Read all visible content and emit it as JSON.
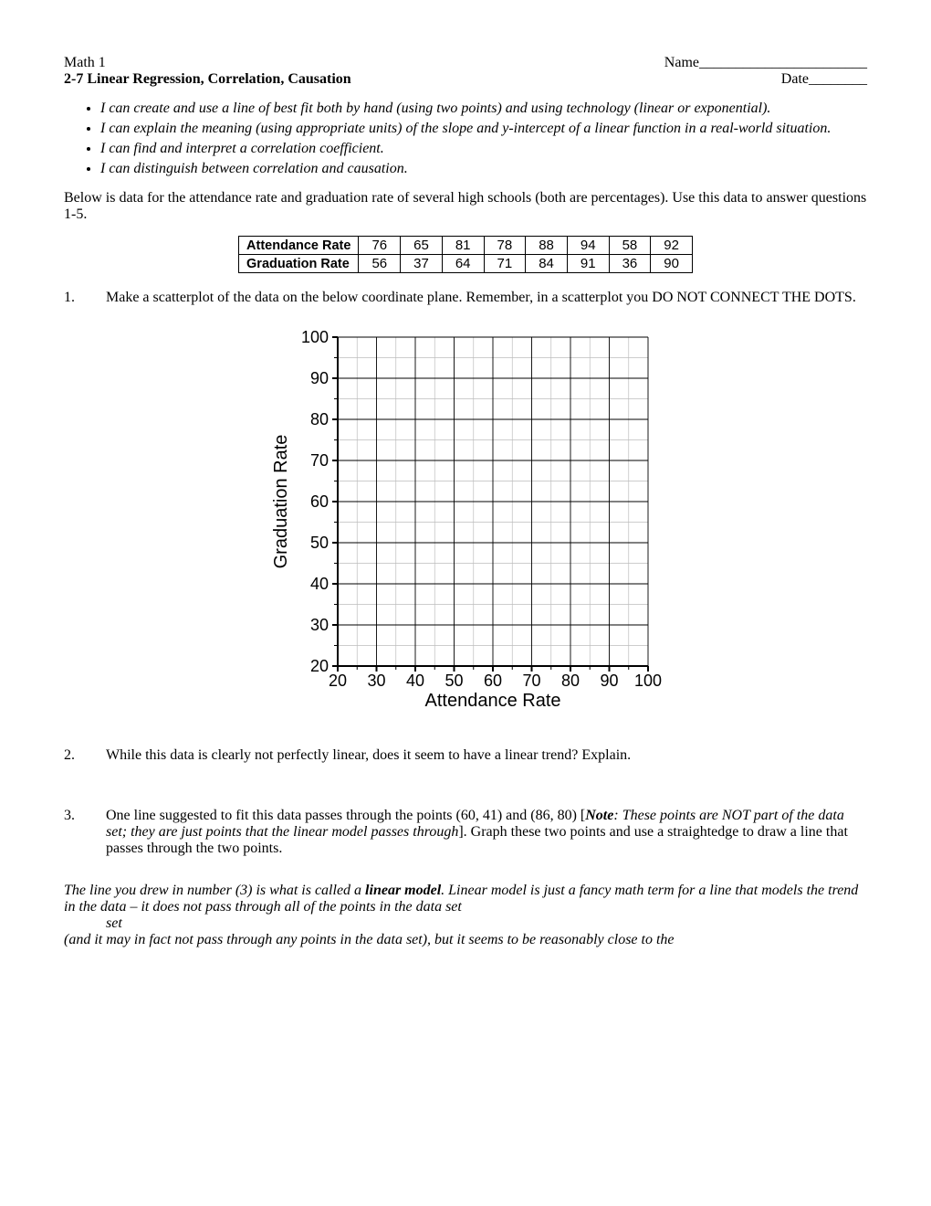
{
  "header": {
    "course": "Math 1",
    "title": "2-7 Linear Regression, Correlation, Causation",
    "name_label": "Name",
    "date_label": "Date"
  },
  "objectives": [
    "I can create and use a line of best fit both by hand (using two points) and using technology (linear or exponential).",
    "I can explain the meaning (using appropriate units) of the slope and y-intercept of a linear function in a real-world situation.",
    "I can find and interpret a correlation coefficient.",
    "I can distinguish between correlation and causation."
  ],
  "intro": "Below is data for the attendance rate and graduation rate of several high schools (both are percentages).  Use this data to answer questions 1-5.",
  "table": {
    "row_labels": [
      "Attendance Rate",
      "Graduation Rate"
    ],
    "rows": [
      [
        76,
        65,
        81,
        78,
        88,
        94,
        58,
        92
      ],
      [
        56,
        37,
        64,
        71,
        84,
        91,
        36,
        90
      ]
    ]
  },
  "questions": {
    "q1": {
      "num": "1.",
      "text_a": "Make a scatterplot of the data on the below coordinate plane.  Remember, in a scatterplot you DO NOT CONNECT THE DOTS."
    },
    "q2": {
      "num": "2.",
      "text": "While this data is clearly not perfectly linear, does it seem to have a linear trend?  Explain."
    },
    "q3": {
      "num": "3.",
      "text_a": "One line suggested to fit this data passes through the points (60, 41) and (86, 80) [",
      "note_label": "Note",
      "note_body": ": These points are NOT part of the data set; they are just points that the linear model passes through",
      "text_b": "].  Graph these two points and use a straightedge to draw a line that passes through the two points."
    }
  },
  "footer": {
    "line1_a": "The line you drew in number (3) is what is called a ",
    "line1_bold": "linear model",
    "line1_b": ".  Linear model is just a fancy math term for a line that models the trend in the data – it does not pass through all of the points in the data set",
    "line2": "(and it may in fact not pass through any points in the data set), but it seems to be reasonably close to the"
  },
  "chart": {
    "type": "scatter-grid",
    "xlabel": "Attendance Rate",
    "ylabel": "Graduation Rate",
    "xlim": [
      20,
      100
    ],
    "ylim": [
      20,
      100
    ],
    "xtick_step": 10,
    "ytick_step": 10,
    "minor_step": 5,
    "label_fontsize": 20,
    "tick_fontsize": 18,
    "axis_color": "#000000",
    "grid_color": "#000000",
    "minor_grid_color": "#bdbdbd",
    "background_color": "#ffffff",
    "xticks": [
      20,
      30,
      40,
      50,
      60,
      70,
      80,
      90,
      100
    ],
    "yticks": [
      20,
      30,
      40,
      50,
      60,
      70,
      80,
      90,
      100
    ]
  }
}
